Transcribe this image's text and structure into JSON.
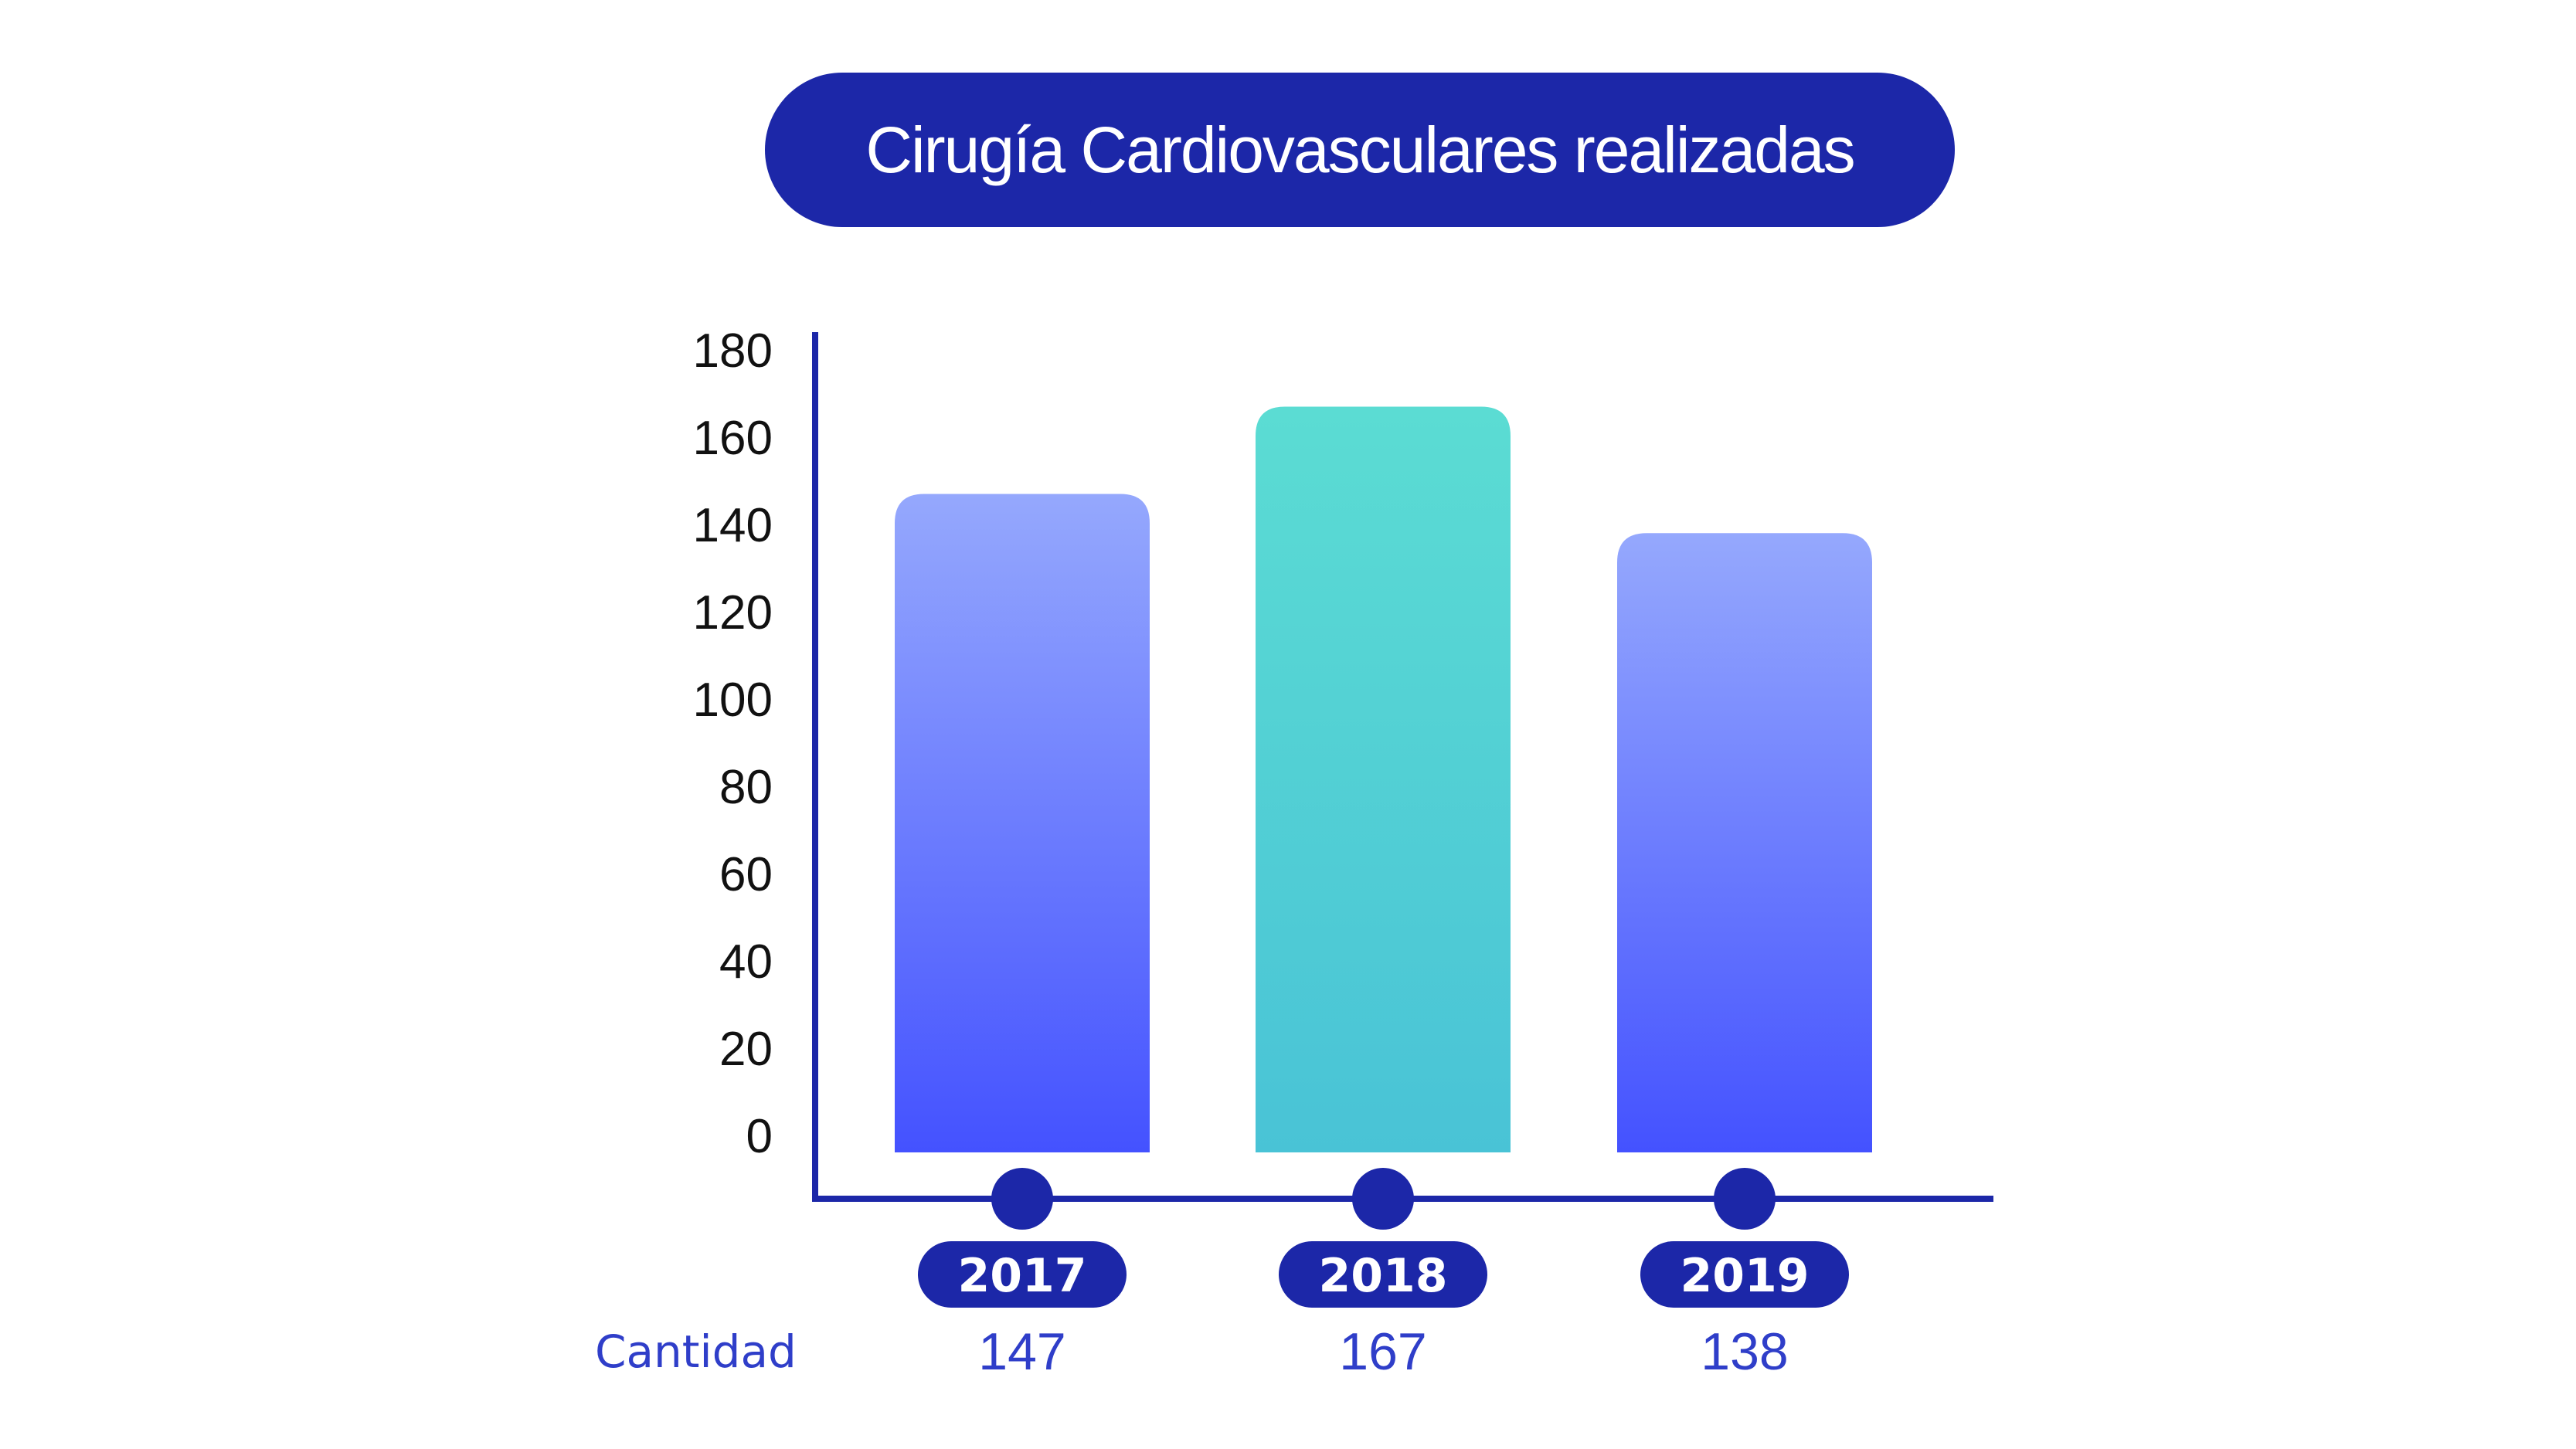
{
  "chart_data": {
    "type": "bar",
    "title": "Cirugía Cardiovasculares realizadas",
    "categories": [
      "2017",
      "2018",
      "2019"
    ],
    "values": [
      147,
      167,
      138
    ],
    "ylim": [
      0,
      180
    ],
    "y_ticks": [
      "0",
      "20",
      "40",
      "60",
      "80",
      "100",
      "120",
      "140",
      "160",
      "180"
    ],
    "row_label": "Cantidad",
    "value_labels": [
      "147",
      "167",
      "138"
    ],
    "colors": [
      "#4452ff",
      "#49c3d6",
      "#4452ff"
    ],
    "accent_color": "#1c27a8"
  }
}
